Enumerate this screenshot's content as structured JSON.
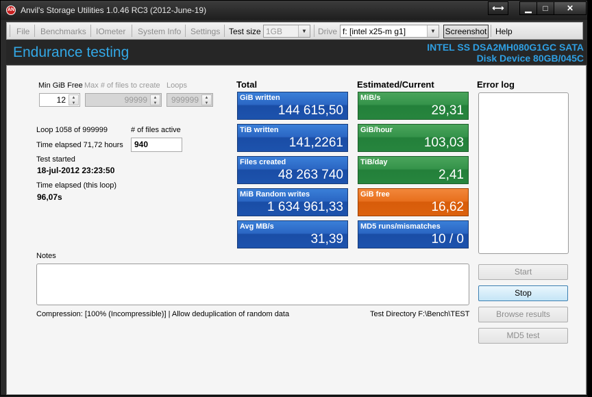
{
  "window": {
    "title": "Anvil's Storage Utilities 1.0.46 RC3 (2012-June-19)",
    "app_icon_text": "AN",
    "buttons": {
      "resize": "⟷",
      "minimize": "▁",
      "maximize": "□",
      "close": "✕"
    }
  },
  "menu": {
    "items": [
      "File",
      "Benchmarks",
      "IOmeter",
      "System Info",
      "Settings"
    ],
    "test_size_label": "Test size",
    "test_size_value": "1GB",
    "drive_label": "Drive",
    "drive_value": "f: [intel x25-m g1]",
    "screenshot_label": "Screenshot",
    "help_label": "Help"
  },
  "header": {
    "title": "Endurance testing",
    "disk_line1": "INTEL SS DSA2MH080G1GC SATA",
    "disk_line2": "Disk Device 80GB/045C"
  },
  "settings": {
    "min_gib_free_label": "Min GiB Free",
    "min_gib_free_value": "12",
    "max_files_label": "Max # of files to create",
    "max_files_value": "99999",
    "loops_label": "Loops",
    "loops_value": "999999"
  },
  "status": {
    "loop_text": "Loop 1058 of 999999",
    "files_active_label": "# of files active",
    "files_active_value": "940",
    "time_elapsed_text": "Time elapsed 71,72 hours",
    "test_started_label": "Test started",
    "test_started_value": "18-jul-2012 23:23:50",
    "loop_elapsed_label": "Time elapsed (this loop)",
    "loop_elapsed_value": "96,07s"
  },
  "total": {
    "heading": "Total",
    "tiles": [
      {
        "label": "GiB written",
        "value": "144 615,50"
      },
      {
        "label": "TiB written",
        "value": "141,2261"
      },
      {
        "label": "Files created",
        "value": "48 263 740"
      },
      {
        "label": "MiB Random writes",
        "value": "1 634 961,33"
      },
      {
        "label": "Avg MB/s",
        "value": "31,39"
      }
    ]
  },
  "estimated": {
    "heading": "Estimated/Current",
    "tiles": [
      {
        "label": "MiB/s",
        "value": "29,31"
      },
      {
        "label": "GiB/hour",
        "value": "103,03"
      },
      {
        "label": "TiB/day",
        "value": "2,41"
      },
      {
        "label": "GiB free",
        "value": "16,62"
      },
      {
        "label": "MD5 runs/mismatches",
        "value": "10 / 0"
      }
    ]
  },
  "error_log": {
    "heading": "Error log"
  },
  "notes": {
    "label": "Notes"
  },
  "footer": {
    "compression": "Compression: [100% (Incompressible)] | Allow deduplication of random data",
    "test_directory": "Test Directory F:\\Bench\\TEST"
  },
  "buttons": {
    "start": "Start",
    "stop": "Stop",
    "browse": "Browse results",
    "md5": "MD5 test"
  },
  "colors": {
    "tile_blue": "#2b67c4",
    "tile_green": "#35934a",
    "tile_orange": "#e8701e",
    "header_accent": "#33a8e6"
  }
}
